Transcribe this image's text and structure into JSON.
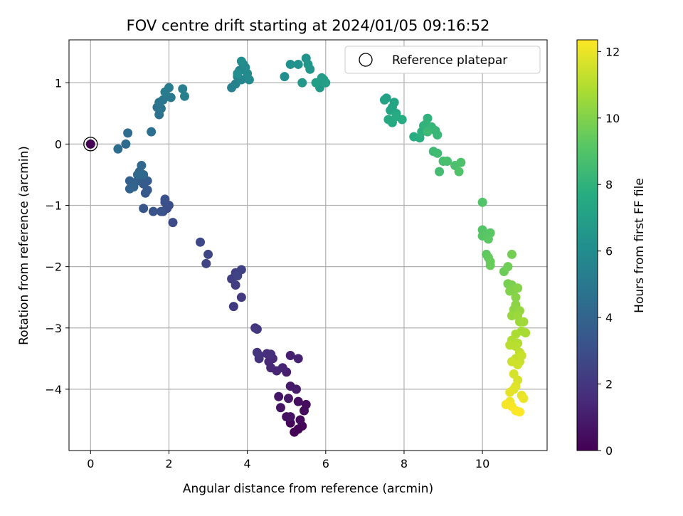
{
  "chart_data": {
    "type": "scatter",
    "title": "FOV centre drift starting at 2024/01/05 09:16:52",
    "xlabel": "Angular distance from reference (arcmin)",
    "ylabel": "Rotation from reference (arcmin)",
    "xlim": [
      -0.55,
      11.65
    ],
    "ylim": [
      -5.0,
      1.7
    ],
    "x_ticks": [
      0,
      2,
      4,
      6,
      8,
      10
    ],
    "y_ticks": [
      1,
      0,
      -1,
      -2,
      -3,
      -4
    ],
    "grid": true,
    "legend": {
      "position": "top-right",
      "entries": [
        "Reference platepar"
      ]
    },
    "colorbar": {
      "label": "Hours from first FF file",
      "colormap": "viridis",
      "range": [
        0,
        12.35
      ],
      "ticks": [
        0,
        2,
        4,
        6,
        8,
        10,
        12
      ]
    },
    "reference_point": {
      "x": 0,
      "y": 0
    },
    "series": [
      {
        "points": [
          [
            5.2,
            -4.7
          ],
          [
            5.3,
            -4.65
          ],
          [
            5.4,
            -4.6
          ],
          [
            5.1,
            -4.55
          ],
          [
            5.35,
            -4.5
          ],
          [
            5.45,
            -4.35
          ],
          [
            5.5,
            -4.25
          ],
          [
            5.3,
            -4.2
          ],
          [
            5.0,
            -4.45
          ],
          [
            5.1,
            -4.45
          ],
          [
            4.85,
            -4.3
          ],
          [
            4.8,
            -4.12
          ],
          [
            5.05,
            -4.15
          ],
          [
            5.1,
            -3.95
          ],
          [
            5.25,
            -4.0
          ],
          [
            5.0,
            -3.72
          ],
          [
            5.1,
            -3.45
          ],
          [
            5.3,
            -3.5
          ],
          [
            4.9,
            -3.65
          ],
          [
            4.75,
            -3.7
          ],
          [
            4.6,
            -3.65
          ],
          [
            4.55,
            -3.55
          ],
          [
            4.65,
            -3.5
          ],
          [
            4.5,
            -3.42
          ],
          [
            4.6,
            -3.43
          ],
          [
            4.3,
            -3.45
          ],
          [
            4.3,
            -3.5
          ],
          [
            4.25,
            -3.4
          ],
          [
            4.2,
            -3.0
          ],
          [
            4.25,
            -3.02
          ],
          [
            3.85,
            -2.5
          ],
          [
            3.65,
            -2.65
          ],
          [
            3.7,
            -2.3
          ],
          [
            3.6,
            -2.2
          ],
          [
            3.7,
            -2.1
          ],
          [
            3.85,
            -2.05
          ],
          [
            3.75,
            -2.15
          ],
          [
            2.95,
            -1.95
          ],
          [
            3.0,
            -1.8
          ],
          [
            2.8,
            -1.6
          ],
          [
            2.1,
            -1.28
          ],
          [
            1.95,
            -1.05
          ],
          [
            1.85,
            -1.1
          ],
          [
            2.0,
            -1.0
          ],
          [
            1.9,
            -0.95
          ],
          [
            1.9,
            -0.9
          ],
          [
            1.8,
            -1.1
          ],
          [
            1.6,
            -1.1
          ],
          [
            1.35,
            -1.05
          ],
          [
            1.4,
            -0.8
          ],
          [
            1.45,
            -0.75
          ],
          [
            1.35,
            -0.65
          ],
          [
            1.45,
            -0.6
          ],
          [
            1.3,
            -0.55
          ],
          [
            1.2,
            -0.6
          ],
          [
            1.1,
            -0.65
          ],
          [
            1.0,
            -0.6
          ],
          [
            1.0,
            -0.73
          ],
          [
            1.1,
            -0.7
          ],
          [
            1.25,
            -0.45
          ],
          [
            1.3,
            -0.35
          ],
          [
            1.35,
            -0.5
          ],
          [
            1.2,
            -0.5
          ],
          [
            0.9,
            0.0
          ],
          [
            0.95,
            0.18
          ],
          [
            0.7,
            -0.08
          ],
          [
            1.55,
            0.2
          ],
          [
            1.75,
            0.48
          ],
          [
            1.7,
            0.6
          ],
          [
            1.8,
            0.58
          ],
          [
            1.75,
            0.68
          ],
          [
            1.85,
            0.72
          ],
          [
            1.95,
            0.78
          ],
          [
            2.05,
            0.76
          ],
          [
            1.9,
            0.85
          ],
          [
            2.0,
            0.92
          ],
          [
            2.35,
            0.9
          ],
          [
            2.4,
            0.78
          ],
          [
            3.6,
            0.92
          ],
          [
            3.7,
            0.98
          ],
          [
            3.75,
            1.1
          ],
          [
            3.8,
            1.2
          ],
          [
            3.85,
            1.05
          ],
          [
            3.9,
            1.3
          ],
          [
            3.95,
            1.25
          ],
          [
            4.0,
            1.15
          ],
          [
            4.05,
            1.05
          ],
          [
            3.85,
            1.35
          ],
          [
            3.75,
            1.15
          ],
          [
            4.95,
            1.1
          ],
          [
            5.1,
            1.3
          ],
          [
            5.3,
            1.3
          ],
          [
            5.5,
            1.4
          ],
          [
            5.55,
            1.3
          ],
          [
            5.6,
            1.22
          ],
          [
            5.8,
            1.0
          ],
          [
            5.4,
            1.0
          ],
          [
            5.85,
            0.92
          ],
          [
            5.9,
            1.08
          ],
          [
            5.95,
            1.05
          ],
          [
            6.0,
            1.0
          ],
          [
            5.75,
            1.0
          ],
          [
            7.55,
            0.75
          ],
          [
            7.5,
            0.72
          ],
          [
            7.7,
            0.6
          ],
          [
            7.65,
            0.55
          ],
          [
            7.75,
            0.68
          ],
          [
            7.8,
            0.5
          ],
          [
            7.6,
            0.4
          ],
          [
            7.7,
            0.35
          ],
          [
            7.8,
            0.45
          ],
          [
            7.95,
            0.4
          ],
          [
            8.25,
            0.12
          ],
          [
            8.4,
            0.1
          ],
          [
            8.45,
            0.2
          ],
          [
            8.5,
            0.3
          ],
          [
            8.6,
            0.42
          ],
          [
            8.55,
            0.32
          ],
          [
            8.7,
            0.28
          ],
          [
            8.8,
            0.22
          ],
          [
            8.85,
            0.15
          ],
          [
            8.6,
            0.2
          ],
          [
            8.75,
            -0.12
          ],
          [
            8.85,
            -0.15
          ],
          [
            8.9,
            -0.45
          ],
          [
            9.0,
            -0.28
          ],
          [
            9.1,
            -0.28
          ],
          [
            9.3,
            -0.35
          ],
          [
            9.45,
            -0.3
          ],
          [
            9.4,
            -0.45
          ],
          [
            10.0,
            -0.95
          ],
          [
            10.0,
            -1.4
          ],
          [
            10.0,
            -1.5
          ],
          [
            10.2,
            -1.45
          ],
          [
            10.15,
            -1.55
          ],
          [
            10.1,
            -1.8
          ],
          [
            10.15,
            -1.85
          ],
          [
            10.2,
            -1.92
          ],
          [
            10.2,
            -1.98
          ],
          [
            10.55,
            -2.08
          ],
          [
            10.65,
            -2.0
          ],
          [
            10.75,
            -1.8
          ],
          [
            10.65,
            -2.28
          ],
          [
            10.75,
            -2.3
          ],
          [
            10.8,
            -2.38
          ],
          [
            10.7,
            -2.4
          ],
          [
            10.9,
            -2.35
          ],
          [
            10.85,
            -2.5
          ],
          [
            10.85,
            -2.62
          ],
          [
            10.8,
            -2.7
          ],
          [
            10.95,
            -2.72
          ],
          [
            10.75,
            -2.8
          ],
          [
            10.9,
            -2.8
          ],
          [
            10.95,
            -2.9
          ],
          [
            11.05,
            -2.9
          ],
          [
            11.0,
            -3.05
          ],
          [
            11.1,
            -3.08
          ],
          [
            10.85,
            -3.1
          ],
          [
            10.75,
            -3.2
          ],
          [
            10.9,
            -3.25
          ],
          [
            10.85,
            -3.3
          ],
          [
            10.7,
            -3.28
          ],
          [
            10.95,
            -3.4
          ],
          [
            10.85,
            -3.5
          ],
          [
            10.95,
            -3.55
          ],
          [
            11.0,
            -3.45
          ],
          [
            10.75,
            -3.55
          ],
          [
            10.9,
            -3.6
          ],
          [
            10.8,
            -3.75
          ],
          [
            10.9,
            -3.85
          ],
          [
            10.85,
            -3.95
          ],
          [
            10.8,
            -4.0
          ],
          [
            10.7,
            -4.05
          ],
          [
            11.0,
            -4.1
          ],
          [
            11.05,
            -4.15
          ],
          [
            10.7,
            -4.2
          ],
          [
            10.6,
            -4.25
          ],
          [
            10.75,
            -4.28
          ],
          [
            10.85,
            -4.35
          ],
          [
            10.95,
            -4.37
          ]
        ]
      }
    ]
  }
}
